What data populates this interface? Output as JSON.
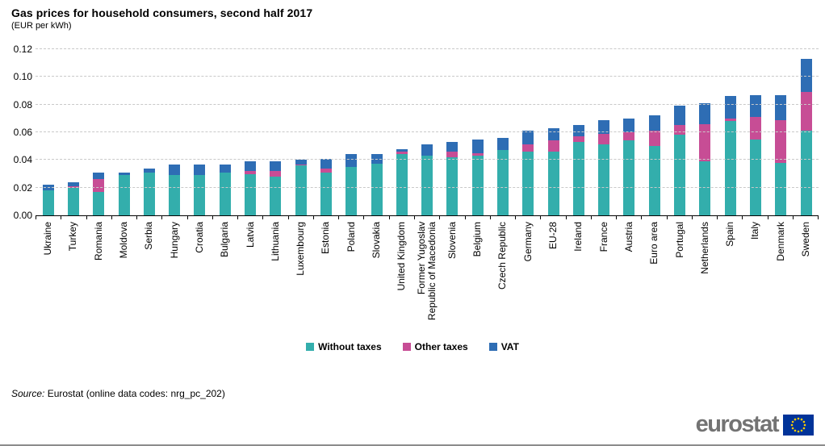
{
  "header": {
    "title": "Gas prices for household consumers, second half 2017",
    "subtitle": "(EUR per kWh)"
  },
  "source": {
    "prefix": "Source:",
    "text": " Eurostat (online data codes: nrg_pc_202)"
  },
  "logo": {
    "text": "eurostat",
    "flag_blue": "#003399",
    "star_yellow": "#ffcc00"
  },
  "chart_data": {
    "type": "bar",
    "stacked": true,
    "title": "Gas prices for household consumers, second half 2017",
    "subtitle": "(EUR per kWh)",
    "unit": "EUR per kWh",
    "ylim": [
      0,
      0.12
    ],
    "grid": "horizontal-dashed",
    "gridline_color": "#c9c9c9",
    "legend_position": "bottom-center",
    "yticks": [
      {
        "value": 0.0,
        "label": "0.00"
      },
      {
        "value": 0.02,
        "label": "0.02"
      },
      {
        "value": 0.04,
        "label": "0.04"
      },
      {
        "value": 0.06,
        "label": "0.06"
      },
      {
        "value": 0.08,
        "label": "0.08"
      },
      {
        "value": 0.1,
        "label": "0.10"
      },
      {
        "value": 0.12,
        "label": "0.12"
      }
    ],
    "categories": [
      "Ukraine",
      "Turkey",
      "Romania",
      "Moldova",
      "Serbia",
      "Hungary",
      "Croatia",
      "Bulgaria",
      "Latvia",
      "Lithuania",
      "Luxembourg",
      "Estonia",
      "Poland",
      "Slovakia",
      "United Kingdom",
      "Former Yugoslav\nRepublic of Macedonia",
      "Slovenia",
      "Belgium",
      "Czech Republic",
      "Germany",
      "EU-28",
      "Ireland",
      "France",
      "Austria",
      "Euro area",
      "Portugal",
      "Netherlands",
      "Spain",
      "Italy",
      "Denmark",
      "Sweden"
    ],
    "series": [
      {
        "name": "Without taxes",
        "color": "#33aeac",
        "values": [
          0.018,
          0.02,
          0.017,
          0.029,
          0.031,
          0.029,
          0.029,
          0.031,
          0.03,
          0.028,
          0.036,
          0.031,
          0.035,
          0.037,
          0.044,
          0.043,
          0.042,
          0.043,
          0.047,
          0.046,
          0.046,
          0.053,
          0.051,
          0.054,
          0.05,
          0.058,
          0.039,
          0.068,
          0.055,
          0.038,
          0.061
        ]
      },
      {
        "name": "Other taxes",
        "color": "#c74d95",
        "values": [
          0.0,
          0.001,
          0.009,
          0.0,
          0.0,
          0.0,
          0.0,
          0.0,
          0.002,
          0.004,
          0.001,
          0.003,
          0.0,
          0.0,
          0.002,
          0.0,
          0.004,
          0.002,
          0.0,
          0.005,
          0.008,
          0.004,
          0.008,
          0.006,
          0.011,
          0.007,
          0.027,
          0.002,
          0.016,
          0.031,
          0.028
        ]
      },
      {
        "name": "VAT",
        "color": "#2e6db4",
        "values": [
          0.004,
          0.003,
          0.005,
          0.002,
          0.003,
          0.008,
          0.008,
          0.006,
          0.007,
          0.007,
          0.003,
          0.007,
          0.009,
          0.007,
          0.002,
          0.008,
          0.007,
          0.01,
          0.009,
          0.01,
          0.009,
          0.008,
          0.01,
          0.01,
          0.011,
          0.014,
          0.015,
          0.016,
          0.016,
          0.018,
          0.024
        ]
      }
    ]
  }
}
